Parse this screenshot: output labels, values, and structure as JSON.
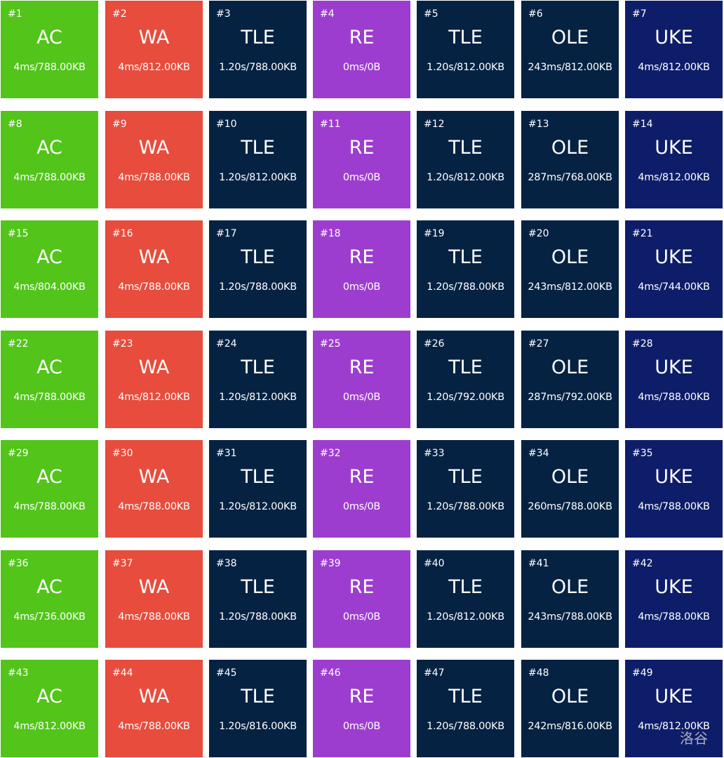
{
  "status_colors": {
    "AC": "#52c41a",
    "WA": "#e74c3c",
    "TLE": "#052242",
    "RE": "#9d3dcf",
    "OLE": "#052242",
    "UKE": "#0e1d69"
  },
  "testcases": [
    {
      "id": "#1",
      "status": "AC",
      "info": "4ms/788.00KB"
    },
    {
      "id": "#2",
      "status": "WA",
      "info": "4ms/812.00KB"
    },
    {
      "id": "#3",
      "status": "TLE",
      "info": "1.20s/788.00KB"
    },
    {
      "id": "#4",
      "status": "RE",
      "info": "0ms/0B"
    },
    {
      "id": "#5",
      "status": "TLE",
      "info": "1.20s/812.00KB"
    },
    {
      "id": "#6",
      "status": "OLE",
      "info": "243ms/812.00KB"
    },
    {
      "id": "#7",
      "status": "UKE",
      "info": "4ms/812.00KB"
    },
    {
      "id": "#8",
      "status": "AC",
      "info": "4ms/788.00KB"
    },
    {
      "id": "#9",
      "status": "WA",
      "info": "4ms/788.00KB"
    },
    {
      "id": "#10",
      "status": "TLE",
      "info": "1.20s/812.00KB"
    },
    {
      "id": "#11",
      "status": "RE",
      "info": "0ms/0B"
    },
    {
      "id": "#12",
      "status": "TLE",
      "info": "1.20s/812.00KB"
    },
    {
      "id": "#13",
      "status": "OLE",
      "info": "287ms/768.00KB"
    },
    {
      "id": "#14",
      "status": "UKE",
      "info": "4ms/812.00KB"
    },
    {
      "id": "#15",
      "status": "AC",
      "info": "4ms/804.00KB"
    },
    {
      "id": "#16",
      "status": "WA",
      "info": "4ms/788.00KB"
    },
    {
      "id": "#17",
      "status": "TLE",
      "info": "1.20s/788.00KB"
    },
    {
      "id": "#18",
      "status": "RE",
      "info": "0ms/0B"
    },
    {
      "id": "#19",
      "status": "TLE",
      "info": "1.20s/788.00KB"
    },
    {
      "id": "#20",
      "status": "OLE",
      "info": "243ms/812.00KB"
    },
    {
      "id": "#21",
      "status": "UKE",
      "info": "4ms/744.00KB"
    },
    {
      "id": "#22",
      "status": "AC",
      "info": "4ms/788.00KB"
    },
    {
      "id": "#23",
      "status": "WA",
      "info": "4ms/812.00KB"
    },
    {
      "id": "#24",
      "status": "TLE",
      "info": "1.20s/812.00KB"
    },
    {
      "id": "#25",
      "status": "RE",
      "info": "0ms/0B"
    },
    {
      "id": "#26",
      "status": "TLE",
      "info": "1.20s/792.00KB"
    },
    {
      "id": "#27",
      "status": "OLE",
      "info": "287ms/792.00KB"
    },
    {
      "id": "#28",
      "status": "UKE",
      "info": "4ms/788.00KB"
    },
    {
      "id": "#29",
      "status": "AC",
      "info": "4ms/788.00KB"
    },
    {
      "id": "#30",
      "status": "WA",
      "info": "4ms/788.00KB"
    },
    {
      "id": "#31",
      "status": "TLE",
      "info": "1.20s/812.00KB"
    },
    {
      "id": "#32",
      "status": "RE",
      "info": "0ms/0B"
    },
    {
      "id": "#33",
      "status": "TLE",
      "info": "1.20s/788.00KB"
    },
    {
      "id": "#34",
      "status": "OLE",
      "info": "260ms/788.00KB"
    },
    {
      "id": "#35",
      "status": "UKE",
      "info": "4ms/788.00KB"
    },
    {
      "id": "#36",
      "status": "AC",
      "info": "4ms/736.00KB"
    },
    {
      "id": "#37",
      "status": "WA",
      "info": "4ms/788.00KB"
    },
    {
      "id": "#38",
      "status": "TLE",
      "info": "1.20s/788.00KB"
    },
    {
      "id": "#39",
      "status": "RE",
      "info": "0ms/0B"
    },
    {
      "id": "#40",
      "status": "TLE",
      "info": "1.20s/812.00KB"
    },
    {
      "id": "#41",
      "status": "OLE",
      "info": "243ms/788.00KB"
    },
    {
      "id": "#42",
      "status": "UKE",
      "info": "4ms/788.00KB"
    },
    {
      "id": "#43",
      "status": "AC",
      "info": "4ms/812.00KB"
    },
    {
      "id": "#44",
      "status": "WA",
      "info": "4ms/788.00KB"
    },
    {
      "id": "#45",
      "status": "TLE",
      "info": "1.20s/816.00KB"
    },
    {
      "id": "#46",
      "status": "RE",
      "info": "0ms/0B"
    },
    {
      "id": "#47",
      "status": "TLE",
      "info": "1.20s/788.00KB"
    },
    {
      "id": "#48",
      "status": "OLE",
      "info": "242ms/816.00KB"
    },
    {
      "id": "#49",
      "status": "UKE",
      "info": "4ms/812.00KB"
    }
  ],
  "watermark": "洛谷"
}
